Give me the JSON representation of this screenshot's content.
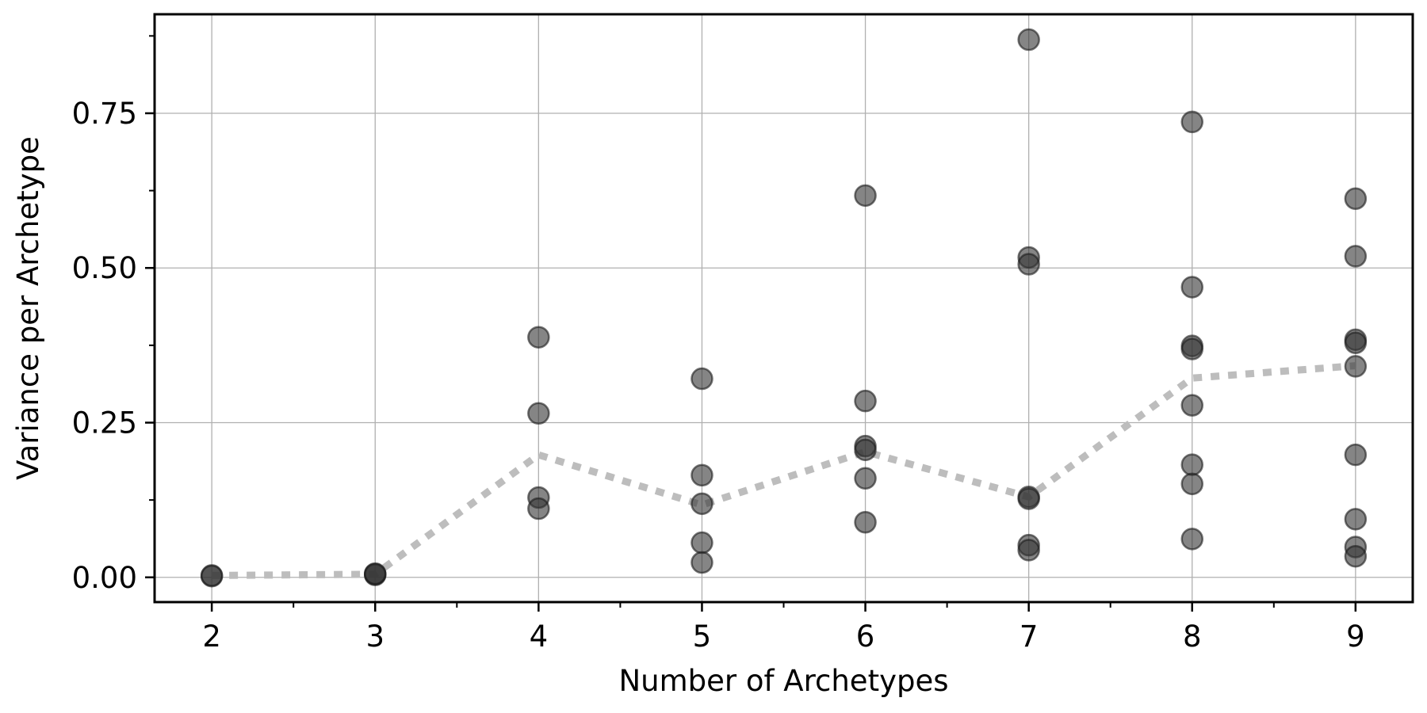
{
  "chart_data": {
    "type": "scatter",
    "title": "",
    "xlabel": "Number of Archetypes",
    "ylabel": "Variance per Archetype",
    "xlim": [
      1.65,
      9.35
    ],
    "ylim": [
      -0.04,
      0.91
    ],
    "x_ticks": [
      2,
      3,
      4,
      5,
      6,
      7,
      8,
      9
    ],
    "x_tick_labels": [
      "2",
      "3",
      "4",
      "5",
      "6",
      "7",
      "8",
      "9"
    ],
    "x_minor_ticks": [
      2.5,
      3.5,
      4.5,
      5.5,
      6.5,
      7.5,
      8.5
    ],
    "y_ticks": [
      0.0,
      0.25,
      0.5,
      0.75
    ],
    "y_tick_labels": [
      "0.00",
      "0.25",
      "0.50",
      "0.75"
    ],
    "y_minor_ticks": [
      0.125,
      0.375,
      0.625,
      0.875
    ],
    "grid": true,
    "colors": {
      "points": "#333333",
      "mean_line": "#bdbdbd",
      "grid": "#b0b0b0",
      "axes": "#000000"
    },
    "series": [
      {
        "kind": "scatter",
        "points": [
          {
            "x": 2,
            "y": 0.002
          },
          {
            "x": 2,
            "y": 0.003
          },
          {
            "x": 3,
            "y": 0.004
          },
          {
            "x": 3,
            "y": 0.005
          },
          {
            "x": 3,
            "y": 0.006
          },
          {
            "x": 4,
            "y": 0.388
          },
          {
            "x": 4,
            "y": 0.265
          },
          {
            "x": 4,
            "y": 0.129
          },
          {
            "x": 4,
            "y": 0.111
          },
          {
            "x": 5,
            "y": 0.321
          },
          {
            "x": 5,
            "y": 0.165
          },
          {
            "x": 5,
            "y": 0.119
          },
          {
            "x": 5,
            "y": 0.056
          },
          {
            "x": 5,
            "y": 0.024
          },
          {
            "x": 6,
            "y": 0.617
          },
          {
            "x": 6,
            "y": 0.285
          },
          {
            "x": 6,
            "y": 0.212
          },
          {
            "x": 6,
            "y": 0.206
          },
          {
            "x": 6,
            "y": 0.16
          },
          {
            "x": 6,
            "y": 0.089
          },
          {
            "x": 7,
            "y": 0.869
          },
          {
            "x": 7,
            "y": 0.517
          },
          {
            "x": 7,
            "y": 0.506
          },
          {
            "x": 7,
            "y": 0.13
          },
          {
            "x": 7,
            "y": 0.127
          },
          {
            "x": 7,
            "y": 0.052
          },
          {
            "x": 7,
            "y": 0.044
          },
          {
            "x": 8,
            "y": 0.736
          },
          {
            "x": 8,
            "y": 0.469
          },
          {
            "x": 8,
            "y": 0.374
          },
          {
            "x": 8,
            "y": 0.369
          },
          {
            "x": 8,
            "y": 0.278
          },
          {
            "x": 8,
            "y": 0.182
          },
          {
            "x": 8,
            "y": 0.151
          },
          {
            "x": 8,
            "y": 0.062
          },
          {
            "x": 9,
            "y": 0.612
          },
          {
            "x": 9,
            "y": 0.519
          },
          {
            "x": 9,
            "y": 0.384
          },
          {
            "x": 9,
            "y": 0.379
          },
          {
            "x": 9,
            "y": 0.341
          },
          {
            "x": 9,
            "y": 0.198
          },
          {
            "x": 9,
            "y": 0.094
          },
          {
            "x": 9,
            "y": 0.049
          },
          {
            "x": 9,
            "y": 0.034
          }
        ]
      },
      {
        "kind": "mean-line",
        "style": "dotted",
        "x": [
          2,
          3,
          4,
          5,
          6,
          7,
          8,
          9
        ],
        "y": [
          0.003,
          0.005,
          0.198,
          0.117,
          0.203,
          0.13,
          0.322,
          0.342
        ]
      }
    ]
  }
}
